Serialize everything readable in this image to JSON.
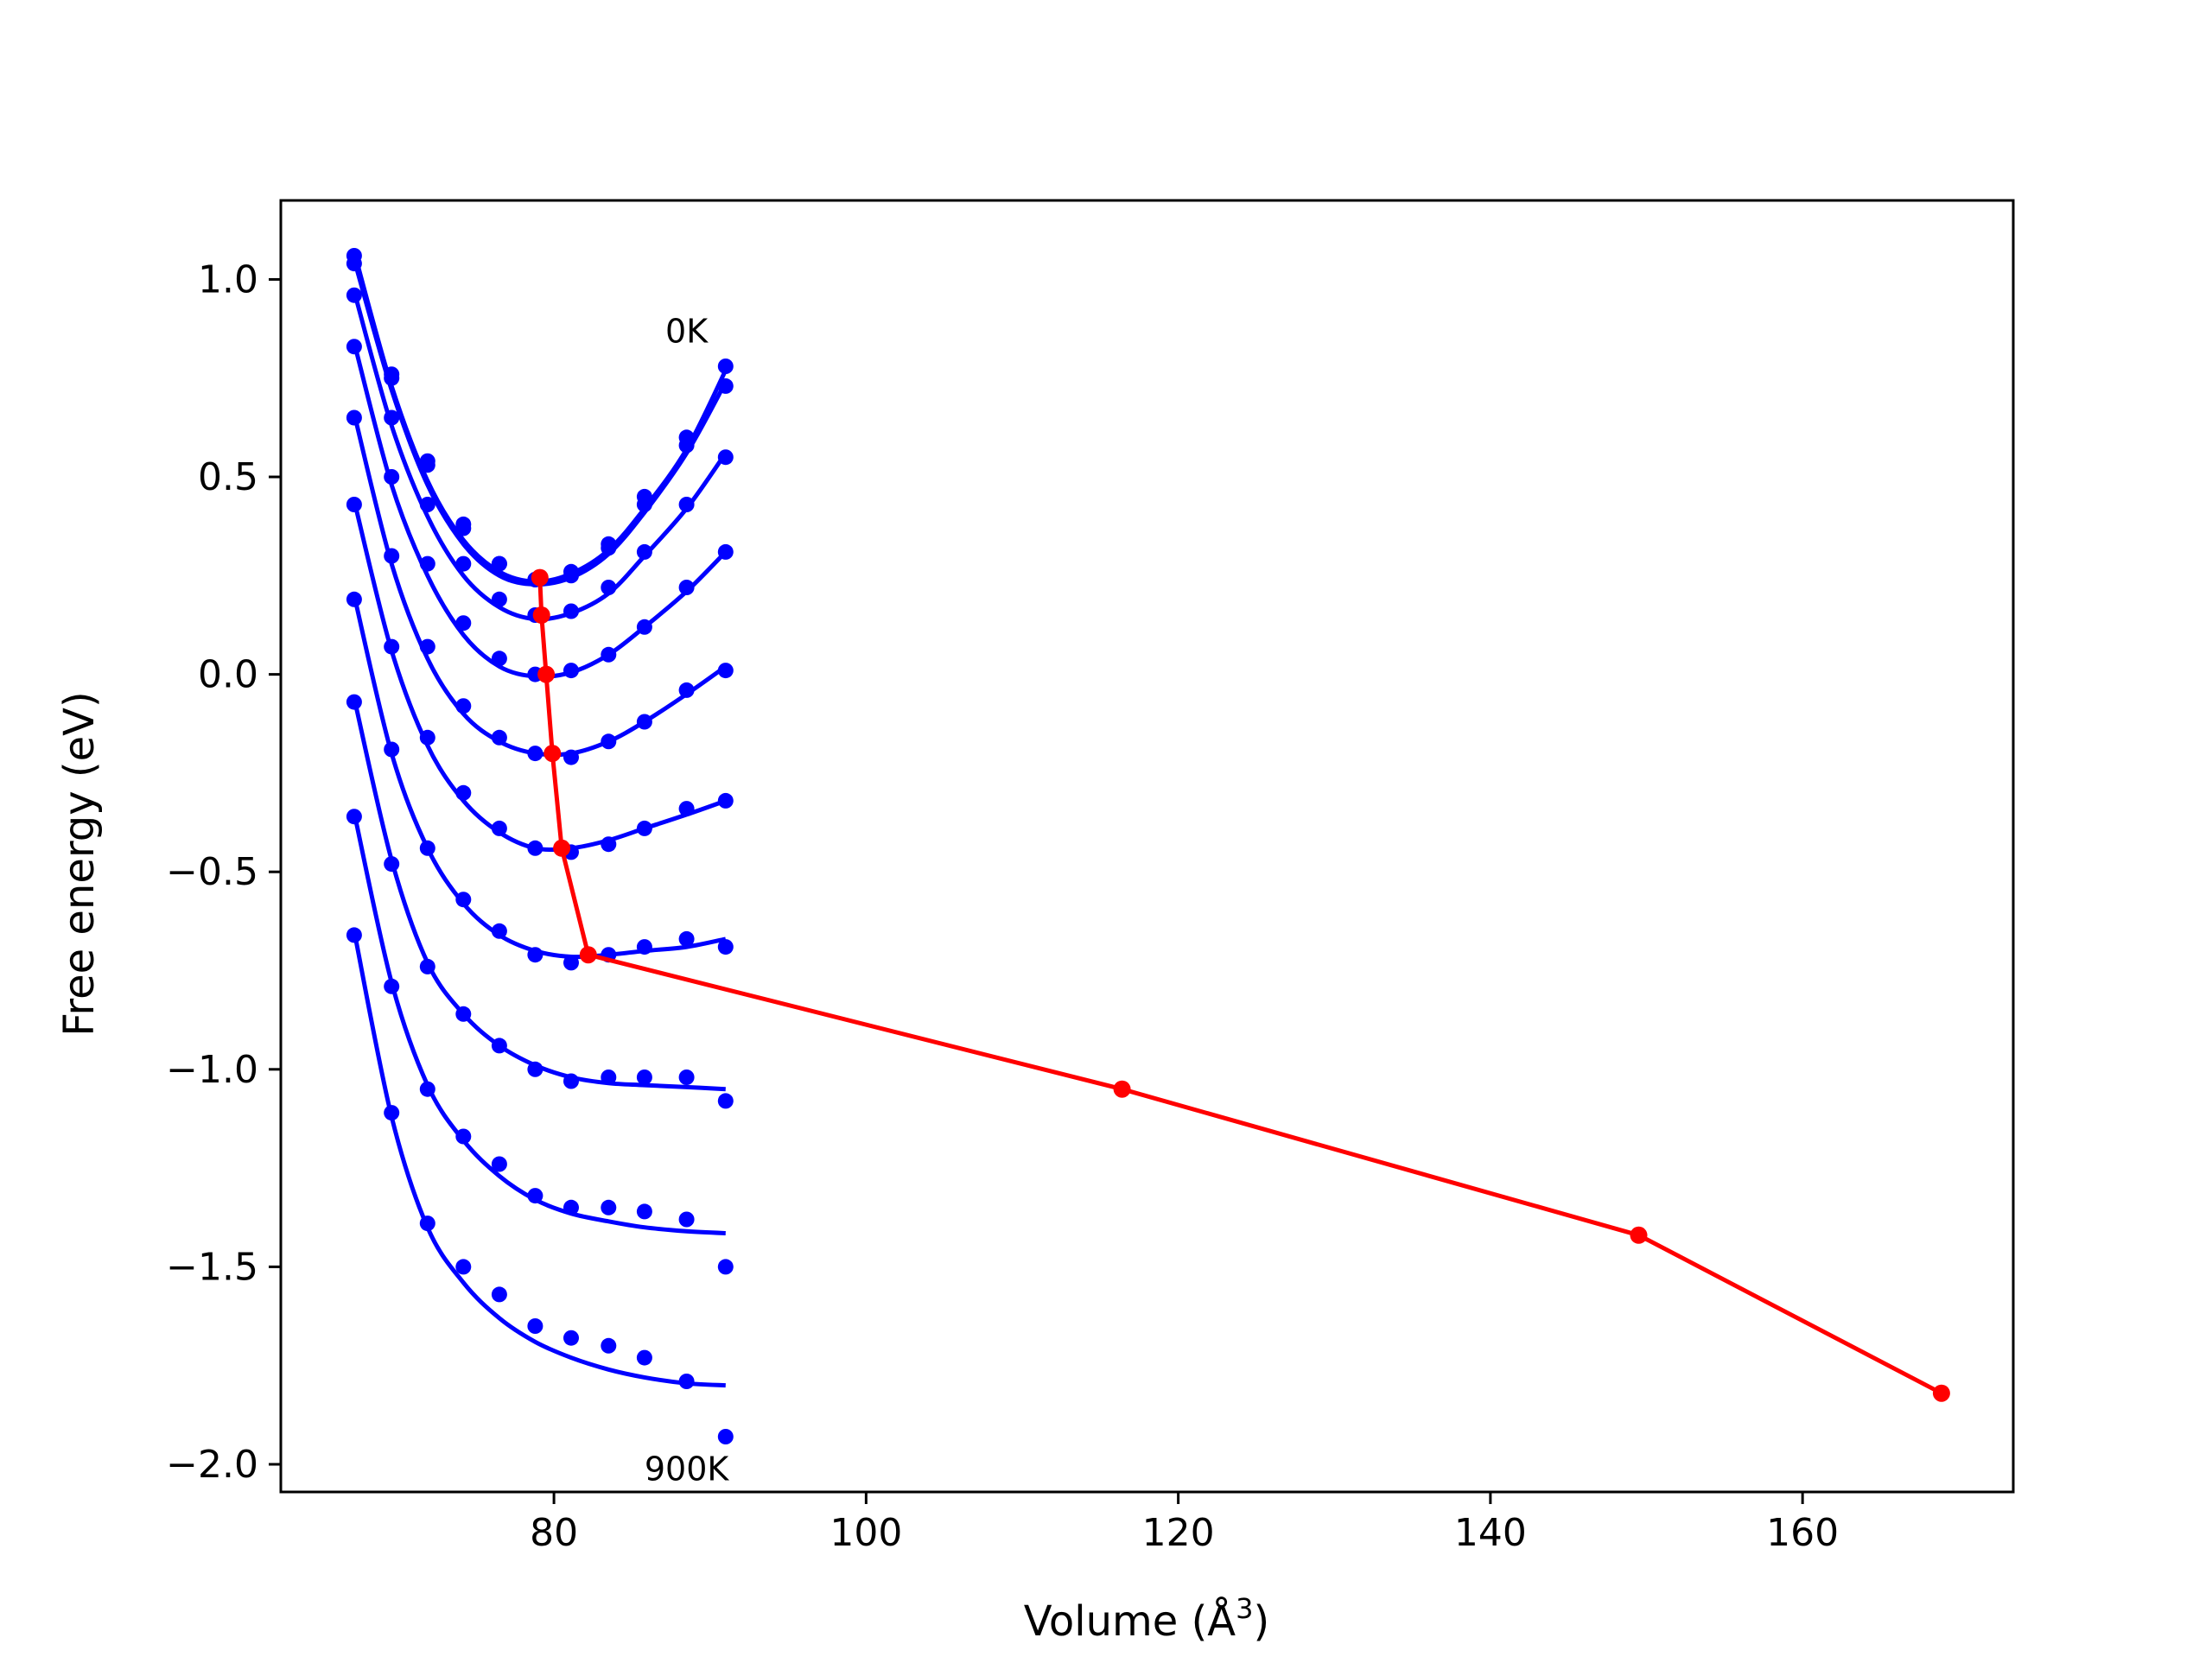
{
  "chart_data": {
    "type": "line",
    "title": "",
    "xlabel": "Volume (Å",
    "xlabel_sup": "3",
    "xlabel_close": ")",
    "ylabel": "Free energy (eV)",
    "xlim": [
      62.5,
      173.5
    ],
    "ylim": [
      -2.07,
      1.2
    ],
    "xticks": [
      80,
      100,
      120,
      140,
      160
    ],
    "xtick_labels": [
      "80",
      "100",
      "120",
      "140",
      "160"
    ],
    "yticks": [
      1.0,
      0.5,
      0.0,
      -0.5,
      -1.0,
      -1.5,
      -2.0
    ],
    "ytick_labels": [
      "1.0",
      "0.5",
      "0.0",
      "−0.5",
      "−1.0",
      "−1.5",
      "−2.0"
    ],
    "grid": false,
    "colors": {
      "curves": "#0000ff",
      "minima": "#ff0000",
      "axes": "#000000"
    },
    "annotations": [
      {
        "text": "0K",
        "x": 88.5,
        "y": 0.84
      },
      {
        "text": "900K",
        "x": 88.5,
        "y": -2.04
      }
    ],
    "volumes": [
      67.2,
      69.6,
      71.9,
      74.2,
      76.5,
      78.8,
      81.1,
      83.5,
      85.8,
      88.5,
      91.0
    ],
    "series": [
      {
        "points": [
          1.06,
          0.76,
          0.54,
          0.38,
          0.28,
          0.24,
          0.26,
          0.33,
          0.45,
          0.6,
          0.78
        ],
        "fit": [
          1.07,
          0.73,
          0.49,
          0.34,
          0.26,
          0.235,
          0.255,
          0.315,
          0.42,
          0.57,
          0.77
        ]
      },
      {
        "points": [
          1.04,
          0.75,
          0.53,
          0.37,
          0.28,
          0.24,
          0.25,
          0.32,
          0.43,
          0.58,
          0.73
        ],
        "fit": [
          1.05,
          0.72,
          0.48,
          0.33,
          0.25,
          0.228,
          0.245,
          0.305,
          0.41,
          0.56,
          0.74
        ]
      },
      {
        "points": [
          0.96,
          0.65,
          0.43,
          0.28,
          0.19,
          0.15,
          0.16,
          0.22,
          0.31,
          0.43,
          0.55
        ],
        "fit": [
          0.97,
          0.63,
          0.4,
          0.25,
          0.17,
          0.14,
          0.155,
          0.205,
          0.3,
          0.42,
          0.56
        ]
      },
      {
        "points": [
          0.83,
          0.5,
          0.28,
          0.13,
          0.04,
          0.0,
          0.01,
          0.05,
          0.12,
          0.22,
          0.31
        ],
        "fit": [
          0.84,
          0.48,
          0.25,
          0.1,
          0.02,
          -0.005,
          0.005,
          0.05,
          0.12,
          0.21,
          0.31
        ]
      },
      {
        "points": [
          0.65,
          0.3,
          0.07,
          -0.08,
          -0.16,
          -0.2,
          -0.21,
          -0.17,
          -0.12,
          -0.04,
          0.01
        ],
        "fit": [
          0.66,
          0.28,
          0.04,
          -0.1,
          -0.17,
          -0.2,
          -0.2,
          -0.17,
          -0.12,
          -0.05,
          0.02
        ]
      },
      {
        "points": [
          0.43,
          0.07,
          -0.16,
          -0.3,
          -0.39,
          -0.44,
          -0.45,
          -0.43,
          -0.39,
          -0.34,
          -0.32
        ],
        "fit": [
          0.44,
          0.06,
          -0.18,
          -0.32,
          -0.4,
          -0.44,
          -0.44,
          -0.42,
          -0.39,
          -0.355,
          -0.32
        ]
      },
      {
        "points": [
          0.19,
          -0.19,
          -0.44,
          -0.57,
          -0.65,
          -0.71,
          -0.73,
          -0.71,
          -0.69,
          -0.67,
          -0.69
        ],
        "fit": [
          0.2,
          -0.2,
          -0.44,
          -0.58,
          -0.66,
          -0.7,
          -0.715,
          -0.71,
          -0.7,
          -0.69,
          -0.67
        ]
      },
      {
        "points": [
          -0.07,
          -0.48,
          -0.74,
          -0.86,
          -0.94,
          -1.0,
          -1.03,
          -1.02,
          -1.02,
          -1.02,
          -1.08
        ],
        "fit": [
          -0.06,
          -0.47,
          -0.73,
          -0.86,
          -0.94,
          -0.99,
          -1.02,
          -1.035,
          -1.04,
          -1.045,
          -1.05
        ]
      },
      {
        "points": [
          -0.36,
          -0.79,
          -1.05,
          -1.17,
          -1.24,
          -1.32,
          -1.35,
          -1.35,
          -1.36,
          -1.38,
          -1.5
        ],
        "fit": [
          -0.35,
          -0.78,
          -1.04,
          -1.18,
          -1.27,
          -1.33,
          -1.365,
          -1.385,
          -1.4,
          -1.41,
          -1.415
        ]
      },
      {
        "points": [
          -0.66,
          -1.11,
          -1.39,
          -1.5,
          -1.57,
          -1.65,
          -1.68,
          -1.7,
          -1.73,
          -1.79,
          -1.93
        ],
        "fit": [
          -0.65,
          -1.12,
          -1.4,
          -1.54,
          -1.63,
          -1.69,
          -1.73,
          -1.76,
          -1.78,
          -1.795,
          -1.8
        ]
      }
    ],
    "minima_path": {
      "x": [
        79.1,
        79.2,
        79.5,
        79.9,
        80.5,
        82.2,
        116.4,
        149.5,
        168.9
      ],
      "y": [
        0.245,
        0.15,
        0.0,
        -0.2,
        -0.44,
        -0.71,
        -1.05,
        -1.42,
        -1.82
      ]
    }
  }
}
